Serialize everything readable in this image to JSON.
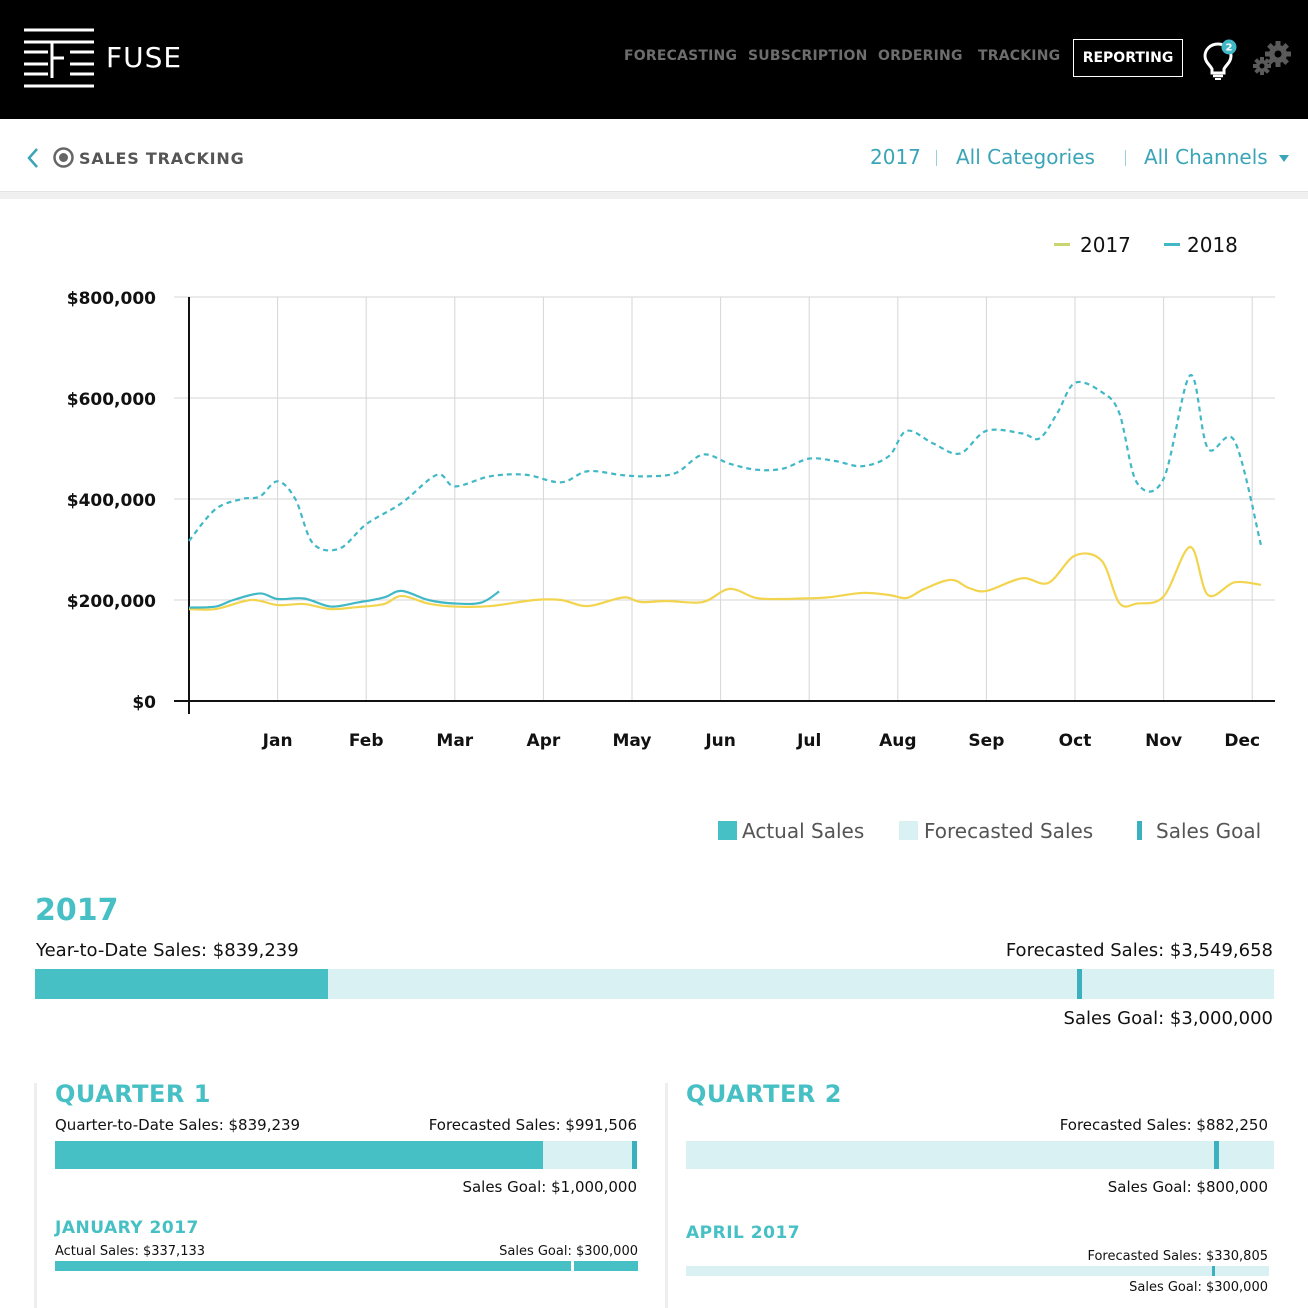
{
  "app": {
    "name": "FUSE",
    "nav": [
      "FORECASTING",
      "SUBSCRIPTION",
      "ORDERING",
      "TRACKING"
    ],
    "nav_active": "REPORTING",
    "notification_count": "2",
    "icons": {
      "logo": "fuse-logo-icon",
      "notifications": "lightbulb-icon",
      "settings": "gears-icon",
      "back": "chevron-left-icon",
      "section": "target-icon"
    }
  },
  "header": {
    "title": "SALES TRACKING",
    "filters": {
      "year": "2017",
      "category": "All Categories",
      "channel": "All Channels"
    }
  },
  "chart_data": {
    "type": "line",
    "title": "",
    "xlabel": "",
    "ylabel": "",
    "x_tick_labels": [
      "Jan",
      "Feb",
      "Mar",
      "Apr",
      "May",
      "Jun",
      "Jul",
      "Aug",
      "Sep",
      "Oct",
      "Nov",
      "Dec"
    ],
    "y_tick_labels": [
      "$800,000",
      "$600,000",
      "$400,000",
      "$200,000",
      "$0"
    ],
    "y_ticks": [
      800000,
      600000,
      400000,
      200000,
      0
    ],
    "ylim": [
      0,
      800000
    ],
    "xlim": [
      0,
      12.2
    ],
    "grid": true,
    "legend_position": "top-right",
    "legend": [
      "2017",
      "2018"
    ],
    "colors": {
      "2017": "#f2d44e",
      "2018": "#41b8c6",
      "legend_2017": "#c9d56e"
    },
    "series": [
      {
        "name": "2017",
        "style": "solid",
        "x": [
          0,
          0.3,
          0.7,
          1.0,
          1.3,
          1.6,
          1.9,
          2.2,
          2.4,
          2.7,
          3.0,
          3.4,
          3.9,
          4.2,
          4.5,
          4.9,
          5.1,
          5.4,
          5.8,
          6.1,
          6.4,
          6.7,
          6.9,
          7.2,
          7.6,
          7.9,
          8.1,
          8.3,
          8.6,
          8.8,
          9.0,
          9.4,
          9.7,
          10.0,
          10.3,
          10.5,
          10.7,
          11.0,
          11.3,
          11.5,
          11.8,
          12.1
        ],
        "y": [
          182000,
          182000,
          200000,
          190000,
          192000,
          182000,
          186000,
          192000,
          208000,
          193000,
          187000,
          188000,
          200000,
          200000,
          188000,
          205000,
          196000,
          198000,
          196000,
          222000,
          204000,
          202000,
          203000,
          205000,
          214000,
          210000,
          204000,
          222000,
          240000,
          224000,
          218000,
          243000,
          234000,
          288000,
          278000,
          194000,
          193000,
          207000,
          305000,
          210000,
          235000,
          230000
        ]
      },
      {
        "name": "2018",
        "style": "solid",
        "x": [
          0,
          0.3,
          0.5,
          0.8,
          1.0,
          1.3,
          1.6,
          1.9,
          2.2,
          2.4,
          2.7,
          3.0,
          3.3,
          3.5
        ],
        "y": [
          185000,
          187000,
          200000,
          213000,
          202000,
          203000,
          187000,
          195000,
          205000,
          218000,
          200000,
          193000,
          195000,
          217000
        ]
      },
      {
        "name": "2018",
        "style": "dashed",
        "x": [
          0,
          0.3,
          0.6,
          0.8,
          1.0,
          1.2,
          1.4,
          1.7,
          2.0,
          2.4,
          2.8,
          3.0,
          3.4,
          3.8,
          4.2,
          4.5,
          4.9,
          5.2,
          5.5,
          5.8,
          6.1,
          6.4,
          6.7,
          7.0,
          7.3,
          7.6,
          7.9,
          8.1,
          8.4,
          8.7,
          9.0,
          9.4,
          9.6,
          9.8,
          10.0,
          10.3,
          10.5,
          10.7,
          11.0,
          11.3,
          11.5,
          11.8,
          12.1
        ],
        "y": [
          317000,
          380000,
          400000,
          405000,
          435000,
          400000,
          312000,
          302000,
          350000,
          392000,
          448000,
          425000,
          445000,
          448000,
          433000,
          455000,
          447000,
          445000,
          452000,
          488000,
          470000,
          458000,
          460000,
          480000,
          475000,
          465000,
          485000,
          535000,
          510000,
          490000,
          535000,
          530000,
          520000,
          570000,
          630000,
          612000,
          570000,
          432000,
          440000,
          645000,
          500000,
          515000,
          308000
        ]
      }
    ]
  },
  "legend_bottom": {
    "actual": "Actual Sales",
    "forecasted": "Forecasted Sales",
    "goal": "Sales Goal",
    "colors": {
      "actual": "#46c0c4",
      "forecasted": "#d9f1f3",
      "goal": "#3bb1c0"
    }
  },
  "year_summary": {
    "year": "2017",
    "ytd_label": "Year-to-Date Sales: $839,239",
    "forecast_label": "Forecasted Sales: $3,549,658",
    "goal_label": "Sales Goal: $3,000,000",
    "actual": 839239,
    "forecast": 3549658,
    "goal": 3000000
  },
  "quarters": [
    {
      "title": "QUARTER 1",
      "to_date_label": "Quarter-to-Date Sales: $839,239",
      "forecast_label": "Forecasted Sales: $991,506",
      "goal_label": "Sales Goal: $1,000,000",
      "actual": 839239,
      "forecast": 991506,
      "goal": 1000000,
      "month": {
        "title": "JANUARY 2017",
        "actual_label": "Actual Sales: $337,133",
        "goal_label": "Sales Goal: $300,000",
        "actual": 337133,
        "goal": 300000
      }
    },
    {
      "title": "QUARTER 2",
      "forecast_label": "Forecasted Sales: $882,250",
      "goal_label": "Sales Goal: $800,000",
      "actual": 0,
      "forecast": 882250,
      "goal": 800000,
      "month": {
        "title": "APRIL 2017",
        "forecast_label": "Forecasted Sales: $330,805",
        "goal_label": "Sales Goal: $300,000",
        "actual": 0,
        "forecast": 330805,
        "goal": 300000
      }
    }
  ]
}
